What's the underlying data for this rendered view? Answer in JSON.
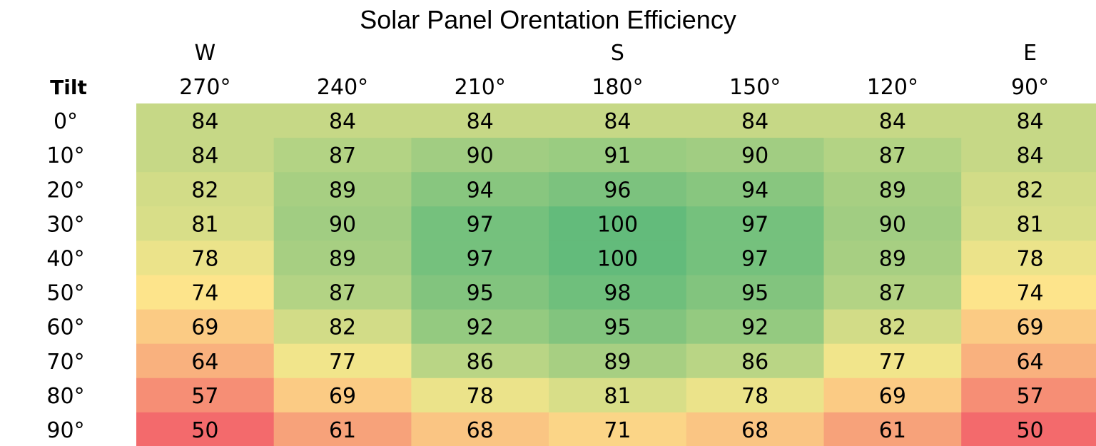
{
  "chart_data": {
    "type": "heatmap",
    "title": "Solar Panel Orentation Efficiency",
    "row_axis_label": "Tilt",
    "compass_labels": [
      {
        "label": "W",
        "azimuth": "270°"
      },
      {
        "label": "S",
        "azimuth": "180°"
      },
      {
        "label": "E",
        "azimuth": "90°"
      }
    ],
    "columns": [
      "270°",
      "240°",
      "210°",
      "180°",
      "150°",
      "120°",
      "90°"
    ],
    "rows": [
      "0°",
      "10°",
      "20°",
      "30°",
      "40°",
      "50°",
      "60°",
      "70°",
      "80°",
      "90°"
    ],
    "values": [
      [
        84,
        84,
        84,
        84,
        84,
        84,
        84
      ],
      [
        84,
        87,
        90,
        91,
        90,
        87,
        84
      ],
      [
        82,
        89,
        94,
        96,
        94,
        89,
        82
      ],
      [
        81,
        90,
        97,
        100,
        97,
        90,
        81
      ],
      [
        78,
        89,
        97,
        100,
        97,
        89,
        78
      ],
      [
        74,
        87,
        95,
        98,
        95,
        87,
        74
      ],
      [
        69,
        82,
        92,
        95,
        92,
        82,
        69
      ],
      [
        64,
        77,
        86,
        89,
        86,
        77,
        64
      ],
      [
        57,
        69,
        78,
        81,
        78,
        69,
        57
      ],
      [
        50,
        61,
        68,
        71,
        68,
        61,
        50
      ]
    ],
    "color_scale": {
      "low": "#f36a6c",
      "mid": "#fde98c",
      "high": "#63bb7b"
    },
    "legend": "none",
    "grid": false
  }
}
